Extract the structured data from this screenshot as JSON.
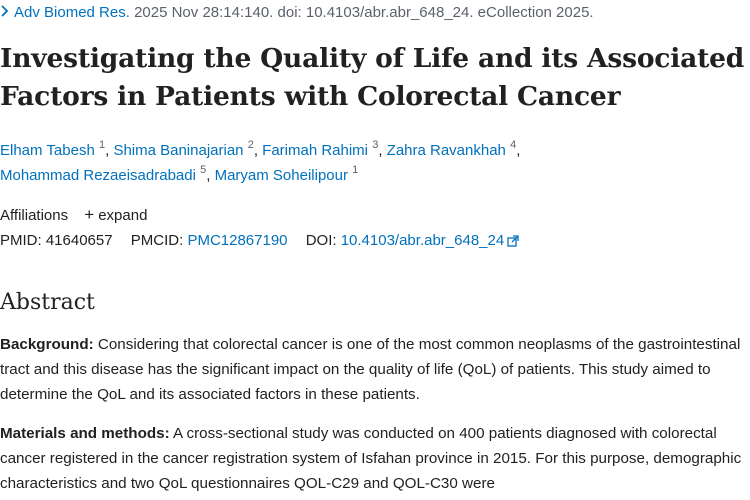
{
  "citation": {
    "journal": "Adv Biomed Res.",
    "details": "2025 Nov 28:14:140. doi: 10.4103/abr.abr_648_24. eCollection 2025."
  },
  "title": "Investigating the Quality of Life and its Associated Factors in Patients with Colorectal Cancer",
  "authors": [
    {
      "name": "Elham Tabesh",
      "sup": "1"
    },
    {
      "name": "Shima Baninajarian",
      "sup": "2"
    },
    {
      "name": "Farimah Rahimi",
      "sup": "3"
    },
    {
      "name": "Zahra Ravankhah",
      "sup": "4"
    },
    {
      "name": "Mohammad Rezaeisadrabadi",
      "sup": "5"
    },
    {
      "name": "Maryam Soheilipour",
      "sup": "1"
    }
  ],
  "affiliations": {
    "label": "Affiliations",
    "expand_label": "expand"
  },
  "ids": {
    "pmid_label": "PMID:",
    "pmid": "41640657",
    "pmcid_label": "PMCID:",
    "pmcid": "PMC12867190",
    "doi_label": "DOI:",
    "doi": "10.4103/abr.abr_648_24"
  },
  "abstract": {
    "heading": "Abstract",
    "background_label": "Background:",
    "background_text": " Considering that colorectal cancer is one of the most common neoplasms of the gastrointestinal tract and this disease has the significant impact on the quality of life (QoL) of patients. This study aimed to determine the QoL and its associated factors in these patients.",
    "methods_label": "Materials and methods:",
    "methods_text": " A cross-sectional study was conducted on 400 patients diagnosed with colorectal cancer registered in the cancer registration system of Isfahan province in 2015. For this purpose, demographic characteristics and two QoL questionnaires QOL-C29 and QOL-C30 were"
  },
  "colors": {
    "link": "#0071bc",
    "text": "#212121",
    "muted": "#5b616b"
  },
  "icons": [
    "chevron-right-icon",
    "plus-icon",
    "external-link-icon"
  ]
}
